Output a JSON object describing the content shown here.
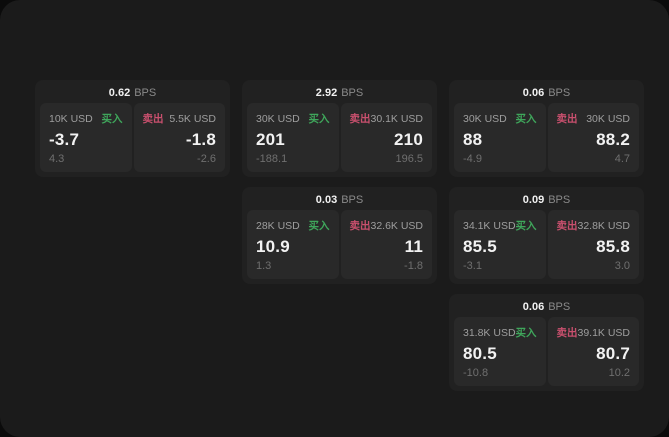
{
  "theme": {
    "page_bg": "#0b0b0b",
    "panel_bg": "#1b1b1b",
    "card_bg": "#212121",
    "cell_bg": "#292929",
    "buy_color": "#3fa65b",
    "sell_color": "#c9506e"
  },
  "labels": {
    "bps": "BPS",
    "buy": "买入",
    "sell": "卖出"
  },
  "cards": [
    {
      "row": 1,
      "col": 1,
      "bps": "0.62",
      "buy": {
        "amount": "10K USD",
        "price": "-3.7",
        "delta": "4.3"
      },
      "sell": {
        "amount": "5.5K USD",
        "price": "-1.8",
        "delta": "-2.6"
      }
    },
    {
      "row": 1,
      "col": 2,
      "bps": "2.92",
      "buy": {
        "amount": "30K USD",
        "price": "201",
        "delta": "-188.1"
      },
      "sell": {
        "amount": "30.1K USD",
        "price": "210",
        "delta": "196.5"
      }
    },
    {
      "row": 1,
      "col": 3,
      "bps": "0.06",
      "buy": {
        "amount": "30K USD",
        "price": "88",
        "delta": "-4.9"
      },
      "sell": {
        "amount": "30K USD",
        "price": "88.2",
        "delta": "4.7"
      }
    },
    {
      "row": 2,
      "col": 2,
      "bps": "0.03",
      "buy": {
        "amount": "28K USD",
        "price": "10.9",
        "delta": "1.3"
      },
      "sell": {
        "amount": "32.6K USD",
        "price": "11",
        "delta": "-1.8"
      }
    },
    {
      "row": 2,
      "col": 3,
      "bps": "0.09",
      "buy": {
        "amount": "34.1K USD",
        "price": "85.5",
        "delta": "-3.1"
      },
      "sell": {
        "amount": "32.8K USD",
        "price": "85.8",
        "delta": "3.0"
      }
    },
    {
      "row": 3,
      "col": 3,
      "bps": "0.06",
      "buy": {
        "amount": "31.8K USD",
        "price": "80.5",
        "delta": "-10.8"
      },
      "sell": {
        "amount": "39.1K USD",
        "price": "80.7",
        "delta": "10.2"
      }
    }
  ]
}
